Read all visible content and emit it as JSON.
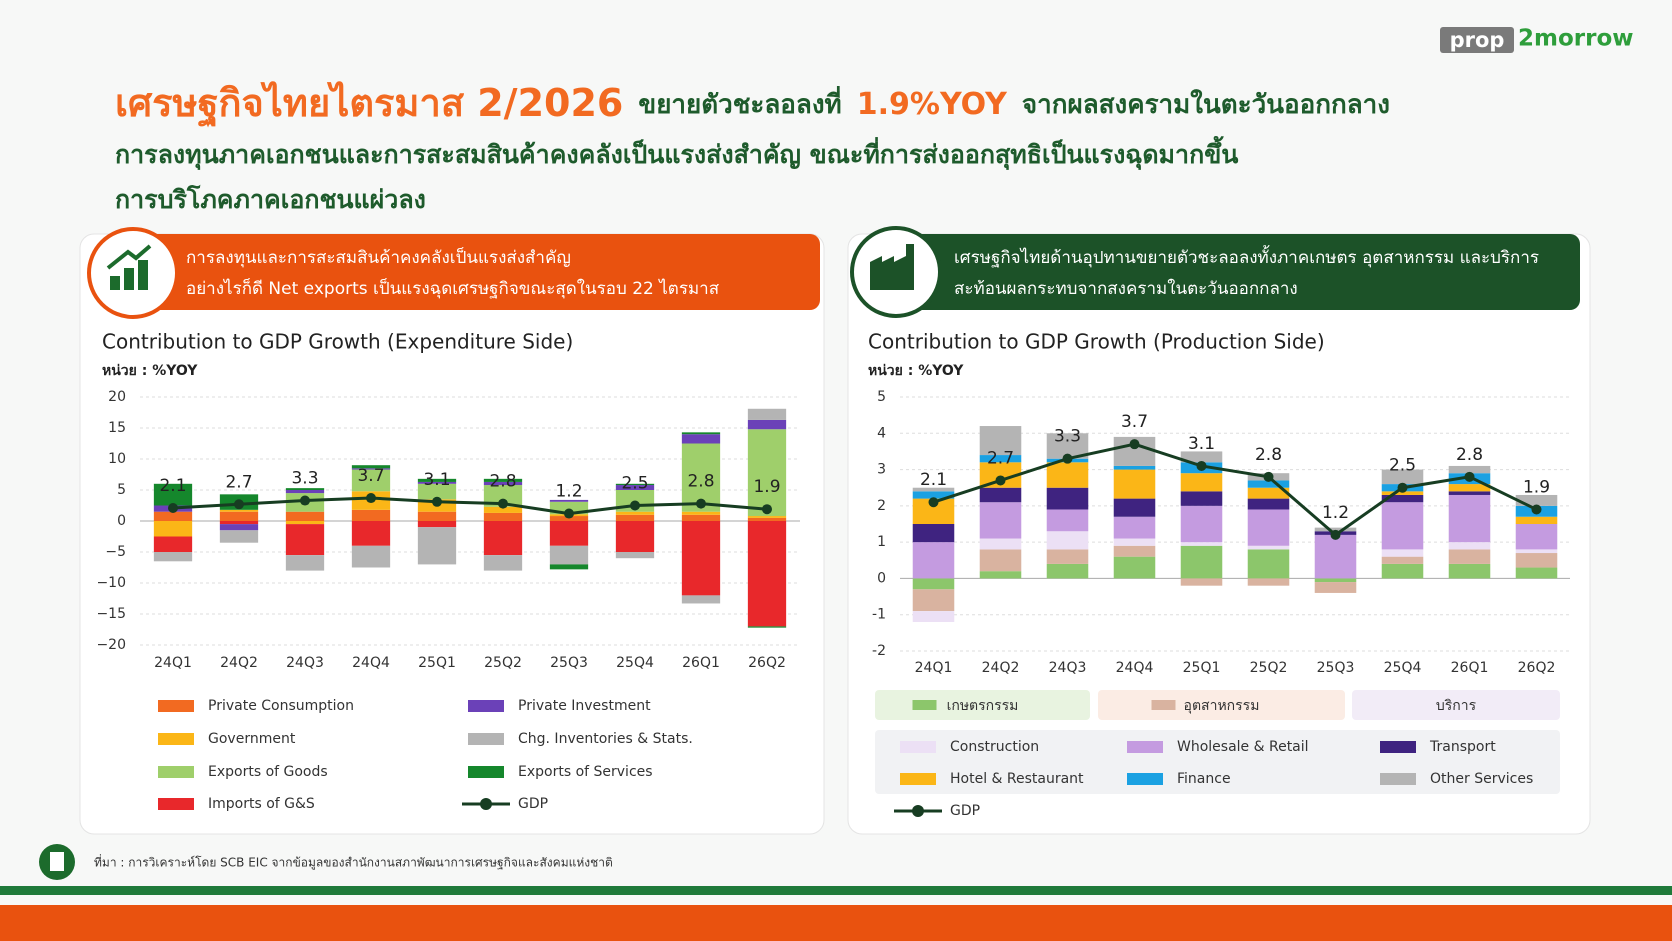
{
  "brand": {
    "part1": "prop",
    "part2": "2morrow"
  },
  "header": {
    "title_parts": [
      "เศรษฐกิจไทยไตรมาส 2/2026",
      "ขยายตัวชะลอลงที่",
      "1.9%YOY",
      "จากผลสงครามในตะวันออกกลาง"
    ],
    "line2": "การลงทุนภาคเอกชนและการสะสมสินค้าคงคลังเป็นแรงส่งสำคัญ ขณะที่การส่งออกสุทธิเป็นแรงฉุดมากขึ้น",
    "line3": "การบริโภคภาคเอกชนแผ่วลง"
  },
  "banners": [
    {
      "line1": "การลงทุนและการสะสมสินค้าคงคลังเป็นแรงส่งสำคัญ",
      "line2": "อย่างไรก็ดี Net exports เป็นแรงฉุดเศรษฐกิจขณะสุดในรอบ 22 ไตรมาส"
    },
    {
      "line1": "เศรษฐกิจไทยด้านอุปทานขยายตัวชะลอลงทั้งภาคเกษตร อุตสาหกรรม และบริการ",
      "line2": "สะท้อนผลกระทบจากสงครามในตะวันออกกลาง"
    }
  ],
  "source": "ที่มา : การวิเคราะห์โดย SCB EIC จากข้อมูลของสำนักงานสภาพัฒนาการเศรษฐกิจและสังคมแห่งชาติ",
  "chart_data": [
    {
      "type": "bar",
      "stacked": true,
      "title": "Contribution to GDP Growth (Expenditure Side)",
      "unit": "หน่วย : %YOY",
      "categories": [
        "24Q1",
        "24Q2",
        "24Q3",
        "24Q4",
        "25Q1",
        "25Q2",
        "25Q3",
        "25Q4",
        "26Q1",
        "26Q2"
      ],
      "ylim": [
        -20,
        20
      ],
      "yticks": [
        {
          "value": -20,
          "label": "−20"
        },
        {
          "value": -15,
          "label": "−15"
        },
        {
          "value": -10,
          "label": "−10"
        },
        {
          "value": -5,
          "label": "−5"
        },
        0,
        5,
        10,
        15,
        20
      ],
      "grid": true,
      "series": [
        {
          "name": "Private Consumption",
          "color": "#f26a21",
          "values": [
            1.5,
            1.5,
            1.5,
            1.8,
            1.5,
            1.3,
            0.8,
            1.0,
            1.0,
            0.5
          ]
        },
        {
          "name": "Government",
          "color": "#fbb617",
          "values": [
            -2.5,
            0.3,
            -0.5,
            3.0,
            2.0,
            1.0,
            0.3,
            0.5,
            0.5,
            0.3
          ]
        },
        {
          "name": "Exports of Goods",
          "color": "#9fcf6b",
          "values": [
            0,
            0,
            3.0,
            3.5,
            2.5,
            3.5,
            2.0,
            3.5,
            11,
            14
          ]
        },
        {
          "name": "Imports of G&S",
          "color": "#e8282b",
          "values": [
            -2.5,
            -0.5,
            -5,
            -4,
            -1,
            -5.5,
            -4,
            -5,
            -12,
            -17
          ]
        },
        {
          "name": "Private Investment",
          "color": "#6b41b8",
          "values": [
            1.0,
            -1,
            0.5,
            0.2,
            0.3,
            0.5,
            0.3,
            0.8,
            1.5,
            1.5
          ]
        },
        {
          "name": "Chg. Inventories & Stats.",
          "color": "#b4b4b4",
          "values": [
            -1.5,
            -2,
            -2.5,
            -3.5,
            -6,
            -2.5,
            -3,
            -1,
            -1.3,
            1.8
          ]
        },
        {
          "name": "Exports of Services",
          "color": "#15872c",
          "values": [
            3.5,
            2.5,
            0.3,
            0.5,
            0.5,
            0.5,
            -0.8,
            0.2,
            0.3,
            -0.2
          ]
        },
        {
          "name": "GDP",
          "type": "line",
          "color": "#173d22",
          "values": [
            2.1,
            2.7,
            3.3,
            3.7,
            3.1,
            2.8,
            1.2,
            2.5,
            2.8,
            1.9
          ]
        }
      ]
    },
    {
      "type": "bar",
      "stacked": true,
      "title": "Contribution to GDP Growth (Production Side)",
      "unit": "หน่วย : %YOY",
      "categories": [
        "24Q1",
        "24Q2",
        "24Q3",
        "24Q4",
        "25Q1",
        "25Q2",
        "25Q3",
        "25Q4",
        "26Q1",
        "26Q2"
      ],
      "ylim": [
        -2,
        5
      ],
      "yticks": [
        -2,
        -1,
        0,
        1,
        2,
        3,
        4,
        5
      ],
      "grid": true,
      "services_group": "บริการ",
      "series": [
        {
          "name": "เกษตรกรรม",
          "color": "#8cc66b",
          "values": [
            -0.3,
            0.2,
            0.4,
            0.6,
            0.9,
            0.8,
            -0.1,
            0.4,
            0.4,
            0.3
          ]
        },
        {
          "name": "อุตสาหกรรม",
          "color": "#d9b3a0",
          "values": [
            -0.6,
            0.6,
            0.4,
            0.3,
            -0.2,
            -0.2,
            -0.3,
            0.2,
            0.4,
            0.4
          ]
        },
        {
          "name": "Construction",
          "color": "#ece0f5",
          "values": [
            -0.3,
            0.3,
            0.5,
            0.2,
            0.1,
            0.1,
            0.0,
            0.2,
            0.2,
            0.1
          ]
        },
        {
          "name": "Wholesale & Retail",
          "color": "#c49be0",
          "values": [
            1.0,
            1.0,
            0.6,
            0.6,
            1.0,
            1.0,
            1.2,
            1.3,
            1.3,
            0.7
          ]
        },
        {
          "name": "Transport",
          "color": "#3f2380",
          "values": [
            0.5,
            0.4,
            0.6,
            0.5,
            0.4,
            0.3,
            0.1,
            0.2,
            0.1,
            0
          ]
        },
        {
          "name": "Hotel & Restaurant",
          "color": "#fbb617",
          "values": [
            0.7,
            0.7,
            0.7,
            0.8,
            0.5,
            0.3,
            0,
            0.1,
            0.2,
            0.2
          ]
        },
        {
          "name": "Finance",
          "color": "#1ba1e2",
          "values": [
            0.2,
            0.2,
            0.1,
            0.1,
            0.3,
            0.2,
            0,
            0.2,
            0.3,
            0.3
          ]
        },
        {
          "name": "Other Services",
          "color": "#b4b4b4",
          "values": [
            0.1,
            0.8,
            0.7,
            0.8,
            0.3,
            0.2,
            0.1,
            0.4,
            0.2,
            0.3
          ]
        },
        {
          "name": "GDP",
          "type": "line",
          "color": "#173d22",
          "values": [
            2.1,
            2.7,
            3.3,
            3.7,
            3.1,
            2.8,
            1.2,
            2.5,
            2.8,
            1.9
          ]
        }
      ]
    }
  ]
}
